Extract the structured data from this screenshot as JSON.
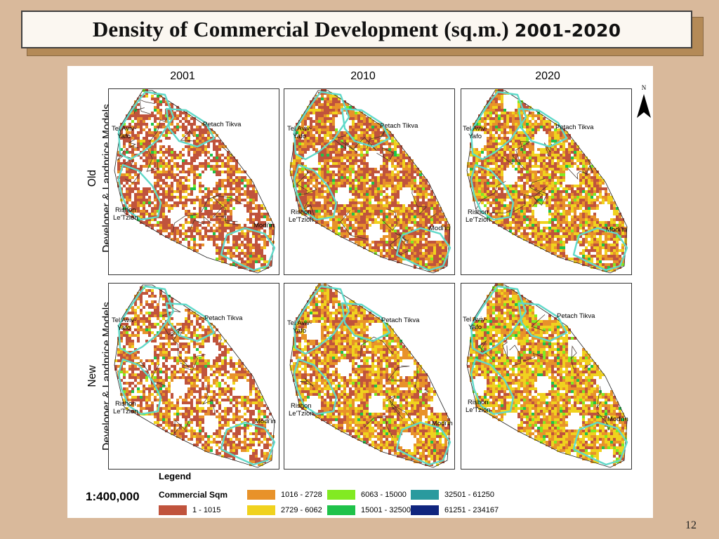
{
  "title": {
    "main": "Density of Commercial Development (sq.m.) ",
    "years": "2001-2020"
  },
  "columns": [
    "2001",
    "2010",
    "2020"
  ],
  "rows": [
    {
      "line1": "Old",
      "line2": "Developer & Landprice Models"
    },
    {
      "line1": "New",
      "line2": "Developer & Landprice Models"
    }
  ],
  "places": {
    "tel_aviv": "Tel Aviv-\nYafo",
    "petach_tikva": "Petach Tikva",
    "rishon": "Rishon\nLe'Tzion",
    "modiin": "Modi'in"
  },
  "north_label": "N",
  "legend": {
    "title": "Legend",
    "scale": "1:400,000",
    "heading": "Commercial Sqm",
    "classes": [
      {
        "label": "1 - 1015",
        "color": "#c0533c"
      },
      {
        "label": "1016 - 2728",
        "color": "#e8922a"
      },
      {
        "label": "2729 - 6062",
        "color": "#f0d21e"
      },
      {
        "label": "6063 - 15000",
        "color": "#82ea22"
      },
      {
        "label": "15001 - 32500",
        "color": "#1fc24a"
      },
      {
        "label": "32501 - 61250",
        "color": "#2a9a9e"
      },
      {
        "label": "61251 - 234167",
        "color": "#10257e"
      }
    ]
  },
  "page_number": "12"
}
